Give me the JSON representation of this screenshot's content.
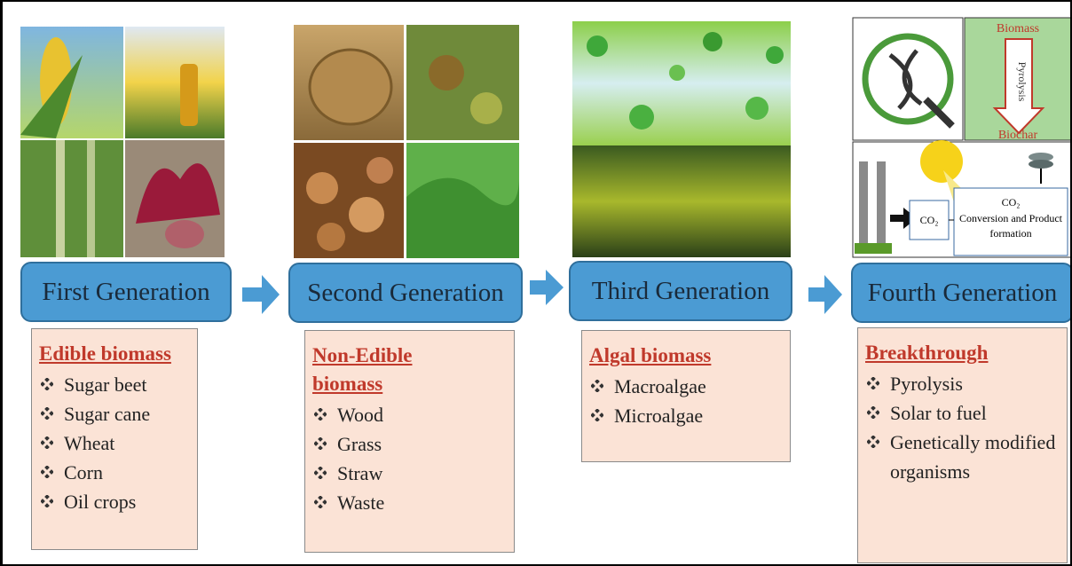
{
  "columns": [
    {
      "title": "First Generation",
      "heading": "Edible biomass",
      "items": [
        "Sugar beet",
        "Sugar cane",
        "Wheat",
        "Corn",
        "Oil crops"
      ]
    },
    {
      "title": "Second Generation",
      "heading": "Non-Edible biomass",
      "items": [
        "Wood",
        "Grass",
        "Straw",
        "Waste"
      ]
    },
    {
      "title": "Third Generation",
      "heading": "Algal biomass",
      "items": [
        "Macroalgae",
        "Microalgae"
      ]
    },
    {
      "title": "Fourth Generation",
      "heading": "Breakthrough",
      "items": [
        "Pyrolysis",
        "Solar to fuel",
        "Genetically modified organisms"
      ]
    }
  ],
  "fourth_panel": {
    "biomass": "Biomass",
    "process": "Pyrolysis",
    "biochar": "Biochar",
    "co2_input": "CO₂",
    "co2_output": "CO₂",
    "conversion": "Conversion and Product formation"
  }
}
